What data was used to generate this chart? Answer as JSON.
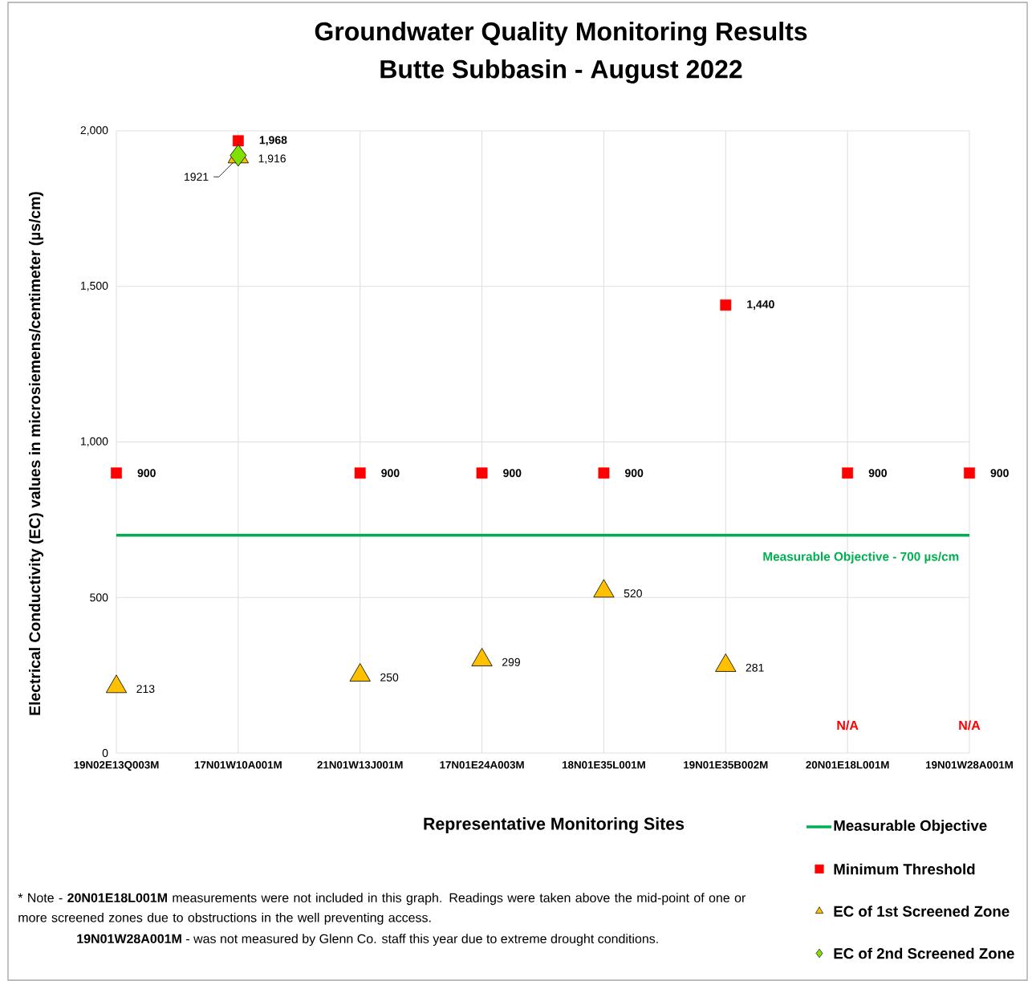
{
  "chart_data": {
    "type": "scatter",
    "title": "Groundwater Quality Monitoring Results",
    "subtitle": "Butte Subbasin - August 2022",
    "xlabel": "Representative Monitoring Sites",
    "ylabel": "Electrical Conductivity (EC) values in microsiemens/centimeter (µs/cm)",
    "categories": [
      "19N02E13Q003M",
      "17N01W10A001M",
      "21N01W13J001M",
      "17N01E24A003M",
      "18N01E35L001M",
      "19N01E35B002M",
      "20N01E18L001M",
      "19N01W28A001M"
    ],
    "series": [
      {
        "name": "Measurable Objective",
        "type": "line",
        "color": "#00b050",
        "values": [
          700,
          700,
          700,
          700,
          700,
          700,
          700,
          700
        ]
      },
      {
        "name": "Minimum Threshold",
        "marker": "square",
        "color": "#ff0000",
        "values": [
          900,
          1968,
          900,
          900,
          900,
          1440,
          900,
          900
        ],
        "value_labels": [
          "900",
          "1,968",
          "900",
          "900",
          "900",
          "1,440",
          "900",
          "900"
        ]
      },
      {
        "name": "EC of 1st Screened Zone",
        "marker": "triangle",
        "color": "#ffc000",
        "values": [
          213,
          1916,
          250,
          299,
          520,
          281,
          null,
          null
        ],
        "value_labels": [
          "213",
          "1,916",
          "250",
          "299",
          "520",
          "281",
          null,
          null
        ]
      },
      {
        "name": "EC of 2nd Screened Zone",
        "marker": "diamond",
        "color": "#80e000",
        "values": [
          null,
          1921,
          null,
          null,
          null,
          null,
          null,
          null
        ],
        "value_labels": [
          null,
          "1921",
          null,
          null,
          null,
          null,
          null,
          null
        ]
      }
    ],
    "ylim": [
      0,
      2000
    ],
    "yticks": [
      0,
      500,
      {
        "value": 1000,
        "label": "1,000"
      },
      {
        "value": 1500,
        "label": "1,500"
      },
      {
        "value": 2000,
        "label": "2,000"
      }
    ],
    "grid": true,
    "legend": "bottom right",
    "annotations": [
      {
        "text": "Measurable Objective - 700 µs/cm",
        "y": 700
      },
      "N/A",
      "N/A",
      "* Note - **20N01E18L001M** measurements were  not included in this graph. Readings were taken above the mid-point of one or more screened zones due to obstructions in the well preventing access.",
      "**19N01W28A001M** - was not measured by Glenn Co. staff this year due to extreme drought conditions."
    ]
  }
}
